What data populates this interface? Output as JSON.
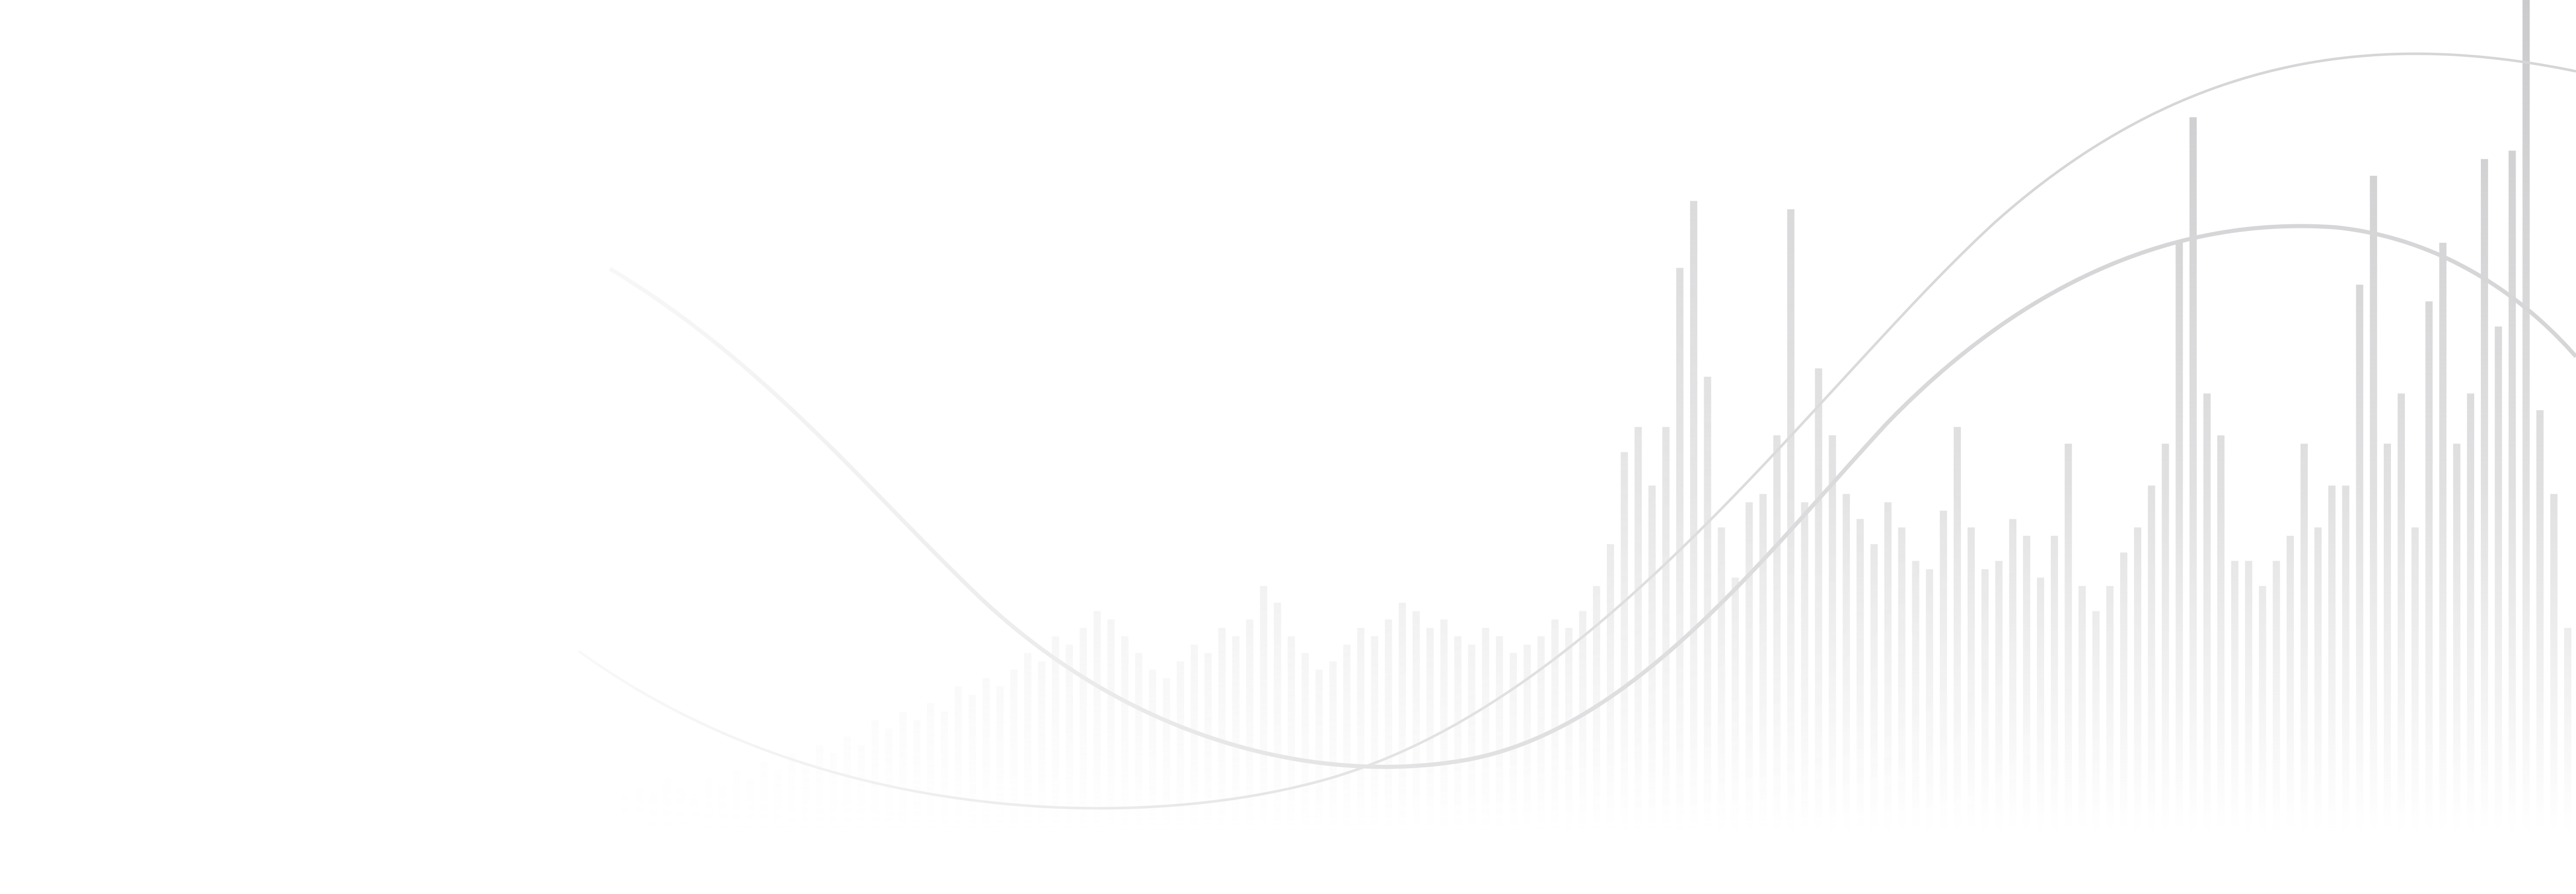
{
  "colors": {
    "background": "#ffffff",
    "bar": "#c8c8ca",
    "wave": "#d6d6d8"
  },
  "graphic": {
    "kind": "decorative-bars-and-waves",
    "bar_levels": [
      0.05,
      0.06,
      0.05,
      0.07,
      0.06,
      0.05,
      0.07,
      0.06,
      0.08,
      0.07,
      0.09,
      0.08,
      0.1,
      0.09,
      0.11,
      0.1,
      0.12,
      0.11,
      0.14,
      0.13,
      0.15,
      0.14,
      0.16,
      0.15,
      0.18,
      0.17,
      0.19,
      0.18,
      0.2,
      0.22,
      0.21,
      0.24,
      0.23,
      0.25,
      0.27,
      0.26,
      0.24,
      0.22,
      0.2,
      0.19,
      0.21,
      0.23,
      0.22,
      0.25,
      0.24,
      0.26,
      0.3,
      0.28,
      0.24,
      0.22,
      0.2,
      0.21,
      0.23,
      0.25,
      0.24,
      0.26,
      0.28,
      0.27,
      0.25,
      0.26,
      0.24,
      0.23,
      0.25,
      0.24,
      0.22,
      0.23,
      0.24,
      0.26,
      0.25,
      0.27,
      0.3,
      0.35,
      0.46,
      0.49,
      0.42,
      0.49,
      0.68,
      0.76,
      0.55,
      0.37,
      0.31,
      0.4,
      0.41,
      0.48,
      0.75,
      0.4,
      0.56,
      0.48,
      0.41,
      0.38,
      0.35,
      0.4,
      0.37,
      0.33,
      0.32,
      0.39,
      0.49,
      0.37,
      0.32,
      0.33,
      0.38,
      0.36,
      0.31,
      0.36,
      0.47,
      0.3,
      0.27,
      0.3,
      0.34,
      0.37,
      0.42,
      0.47,
      0.71,
      0.86,
      0.53,
      0.48,
      0.33,
      0.33,
      0.3,
      0.33,
      0.36,
      0.47,
      0.37,
      0.42,
      0.42,
      0.66,
      0.79,
      0.47,
      0.53,
      0.37,
      0.64,
      0.71,
      0.47,
      0.53,
      0.81,
      0.61,
      0.82,
      1.0,
      0.51,
      0.41,
      0.25
    ],
    "wave_count": 2
  }
}
